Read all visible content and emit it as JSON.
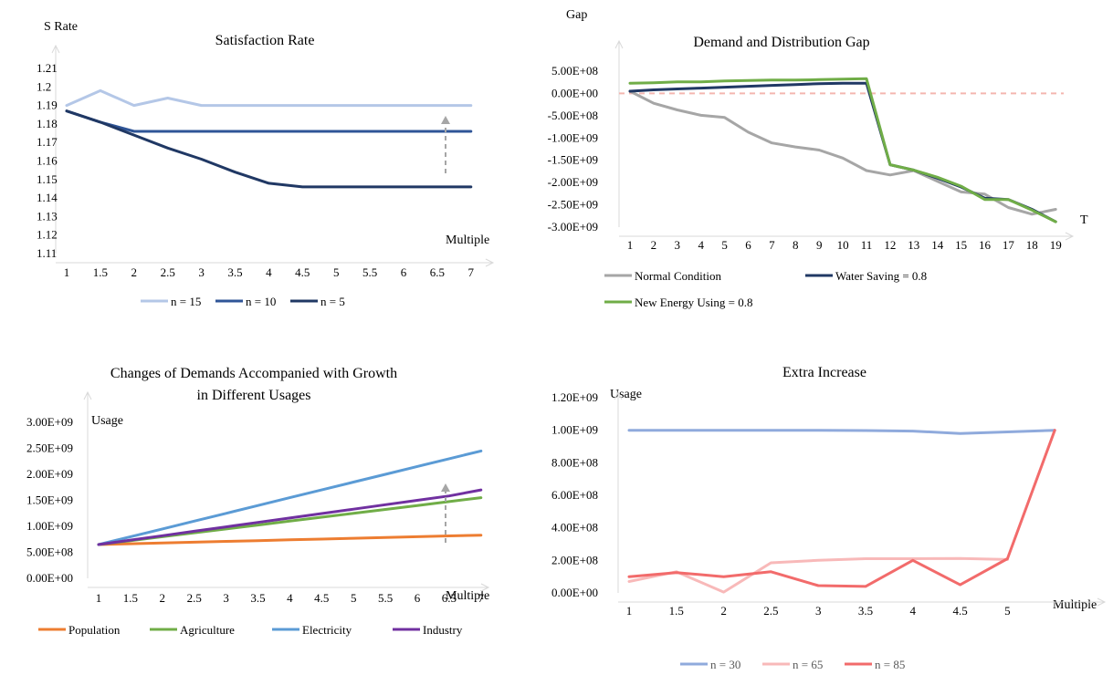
{
  "chart_data": [
    {
      "type": "line",
      "title": "Satisfaction Rate",
      "ylabel": "S Rate",
      "xlabel": "Multiple",
      "categories": [
        "1",
        "1.5",
        "2",
        "2.5",
        "3",
        "3.5",
        "4",
        "4.5",
        "5",
        "5.5",
        "6",
        "6.5",
        "7"
      ],
      "y_ticks": [
        "1.11",
        "1.12",
        "1.13",
        "1.14",
        "1.15",
        "1.16",
        "1.17",
        "1.18",
        "1.19",
        "1.2",
        "1.21"
      ],
      "ylim": [
        1.11,
        1.21
      ],
      "grid": false,
      "legend_position": "bottom",
      "series": [
        {
          "name": "n = 15",
          "color": "#b4c7e7",
          "values": [
            1.19,
            1.198,
            1.19,
            1.194,
            1.19,
            1.19,
            1.19,
            1.19,
            1.19,
            1.19,
            1.19,
            1.19,
            1.19
          ]
        },
        {
          "name": "n = 10",
          "color": "#2f5597",
          "values": [
            1.187,
            1.181,
            1.176,
            1.176,
            1.176,
            1.176,
            1.176,
            1.176,
            1.176,
            1.176,
            1.176,
            1.176,
            1.176
          ]
        },
        {
          "name": "n = 5",
          "color": "#203864",
          "values": [
            1.187,
            1.181,
            1.174,
            1.167,
            1.161,
            1.154,
            1.148,
            1.146,
            1.146,
            1.146,
            1.146,
            1.146,
            1.146
          ]
        }
      ],
      "annotation": "dashed-up-arrow"
    },
    {
      "type": "line",
      "title": "Demand and Distribution Gap",
      "ylabel": "Gap",
      "xlabel": "T",
      "categories": [
        "1",
        "2",
        "3",
        "4",
        "5",
        "6",
        "7",
        "8",
        "9",
        "10",
        "11",
        "12",
        "13",
        "14",
        "15",
        "16",
        "17",
        "18",
        "19"
      ],
      "y_ticks": [
        "-3.00E+09",
        "-2.50E+09",
        "-2.00E+09",
        "-1.50E+09",
        "-1.00E+09",
        "-5.00E+08",
        "0.00E+00",
        "5.00E+08"
      ],
      "ylim": [
        -3000000000.0,
        500000000.0
      ],
      "grid": false,
      "legend_position": "bottom",
      "reference_line": {
        "y": 0,
        "style": "dashed",
        "color": "#f4b6b0"
      },
      "series": [
        {
          "name": "Normal Condition",
          "color": "#a6a6a6",
          "values": [
            50000000.0,
            -220000000.0,
            -370000000.0,
            -490000000.0,
            -540000000.0,
            -870000000.0,
            -1110000000.0,
            -1200000000.0,
            -1270000000.0,
            -1450000000.0,
            -1730000000.0,
            -1830000000.0,
            -1730000000.0,
            -1970000000.0,
            -2210000000.0,
            -2260000000.0,
            -2560000000.0,
            -2710000000.0,
            -2600000000.0
          ]
        },
        {
          "name": "Water Saving = 0.8",
          "color": "#203864",
          "values": [
            50000000.0,
            80000000.0,
            100000000.0,
            120000000.0,
            140000000.0,
            160000000.0,
            180000000.0,
            200000000.0,
            220000000.0,
            230000000.0,
            230000000.0,
            -1600000000.0,
            -1720000000.0,
            -1900000000.0,
            -2100000000.0,
            -2350000000.0,
            -2380000000.0,
            -2600000000.0,
            -2880000000.0
          ]
        },
        {
          "name": "New Energy Using = 0.8",
          "color": "#70ad47",
          "values": [
            230000000.0,
            240000000.0,
            260000000.0,
            260000000.0,
            280000000.0,
            290000000.0,
            300000000.0,
            300000000.0,
            310000000.0,
            320000000.0,
            330000000.0,
            -1600000000.0,
            -1720000000.0,
            -1880000000.0,
            -2080000000.0,
            -2380000000.0,
            -2380000000.0,
            -2620000000.0,
            -2880000000.0
          ]
        }
      ]
    },
    {
      "type": "line",
      "title": "Changes of Demands Accompanied with Growth",
      "subtitle": "in Different Usages",
      "ylabel": "Usage",
      "xlabel": "Multiple",
      "categories": [
        "1",
        "1.5",
        "2",
        "2.5",
        "3",
        "3.5",
        "4",
        "4.5",
        "5",
        "5.5",
        "6",
        "6.5",
        "7"
      ],
      "y_ticks": [
        "0.00E+00",
        "5.00E+08",
        "1.00E+09",
        "1.50E+09",
        "2.00E+09",
        "2.50E+09",
        "3.00E+09"
      ],
      "ylim": [
        0,
        3000000000.0
      ],
      "grid": false,
      "legend_position": "bottom",
      "series": [
        {
          "name": "Population",
          "color": "#ed7d31",
          "values": [
            650000000.0,
            665000000.0,
            680000000.0,
            695000000.0,
            710000000.0,
            725000000.0,
            740000000.0,
            755000000.0,
            770000000.0,
            785000000.0,
            800000000.0,
            815000000.0,
            830000000.0
          ]
        },
        {
          "name": "Agriculture",
          "color": "#70ad47",
          "values": [
            650000000.0,
            725000000.0,
            800000000.0,
            875000000.0,
            950000000.0,
            1025000000.0,
            1100000000.0,
            1175000000.0,
            1250000000.0,
            1325000000.0,
            1400000000.0,
            1475000000.0,
            1550000000.0
          ]
        },
        {
          "name": "Electricity",
          "color": "#5b9bd5",
          "values": [
            650000000.0,
            800000000.0,
            950000000.0,
            1100000000.0,
            1250000000.0,
            1400000000.0,
            1550000000.0,
            1700000000.0,
            1850000000.0,
            2000000000.0,
            2150000000.0,
            2300000000.0,
            2450000000.0
          ]
        },
        {
          "name": "Industry",
          "color": "#7030a0",
          "values": [
            650000000.0,
            735000000.0,
            820000000.0,
            905000000.0,
            990000000.0,
            1075000000.0,
            1160000000.0,
            1245000000.0,
            1330000000.0,
            1415000000.0,
            1500000000.0,
            1585000000.0,
            1700000000.0
          ]
        }
      ],
      "annotation": "dashed-up-arrow"
    },
    {
      "type": "line",
      "title": "Extra Increase",
      "ylabel": "Usage",
      "xlabel": "Multiple",
      "categories": [
        "1",
        "1.5",
        "2",
        "2.5",
        "3",
        "3.5",
        "4",
        "4.5",
        "5",
        ""
      ],
      "y_ticks": [
        "0.00E+00",
        "2.00E+08",
        "4.00E+08",
        "6.00E+08",
        "8.00E+08",
        "1.00E+09",
        "1.20E+09"
      ],
      "ylim": [
        0,
        1200000000.0
      ],
      "grid": false,
      "legend_position": "bottom",
      "series": [
        {
          "name": "n = 30",
          "color": "#8faadc",
          "values": [
            1000000000.0,
            1000000000.0,
            1000000000.0,
            1000000000.0,
            1000000000.0,
            998000000.0,
            995000000.0,
            980000000.0,
            990000000.0,
            1000000000.0
          ]
        },
        {
          "name": "n = 65",
          "color": "#f8b9b9",
          "values": [
            70000000.0,
            130000000.0,
            5000000.0,
            185000000.0,
            200000000.0,
            210000000.0,
            210000000.0,
            212000000.0,
            205000000.0,
            null
          ]
        },
        {
          "name": "n = 85",
          "color": "#f26b6b",
          "values": [
            100000000.0,
            125000000.0,
            100000000.0,
            130000000.0,
            45000000.0,
            40000000.0,
            200000000.0,
            50000000.0,
            210000000.0,
            1000000000.0
          ]
        }
      ]
    }
  ]
}
